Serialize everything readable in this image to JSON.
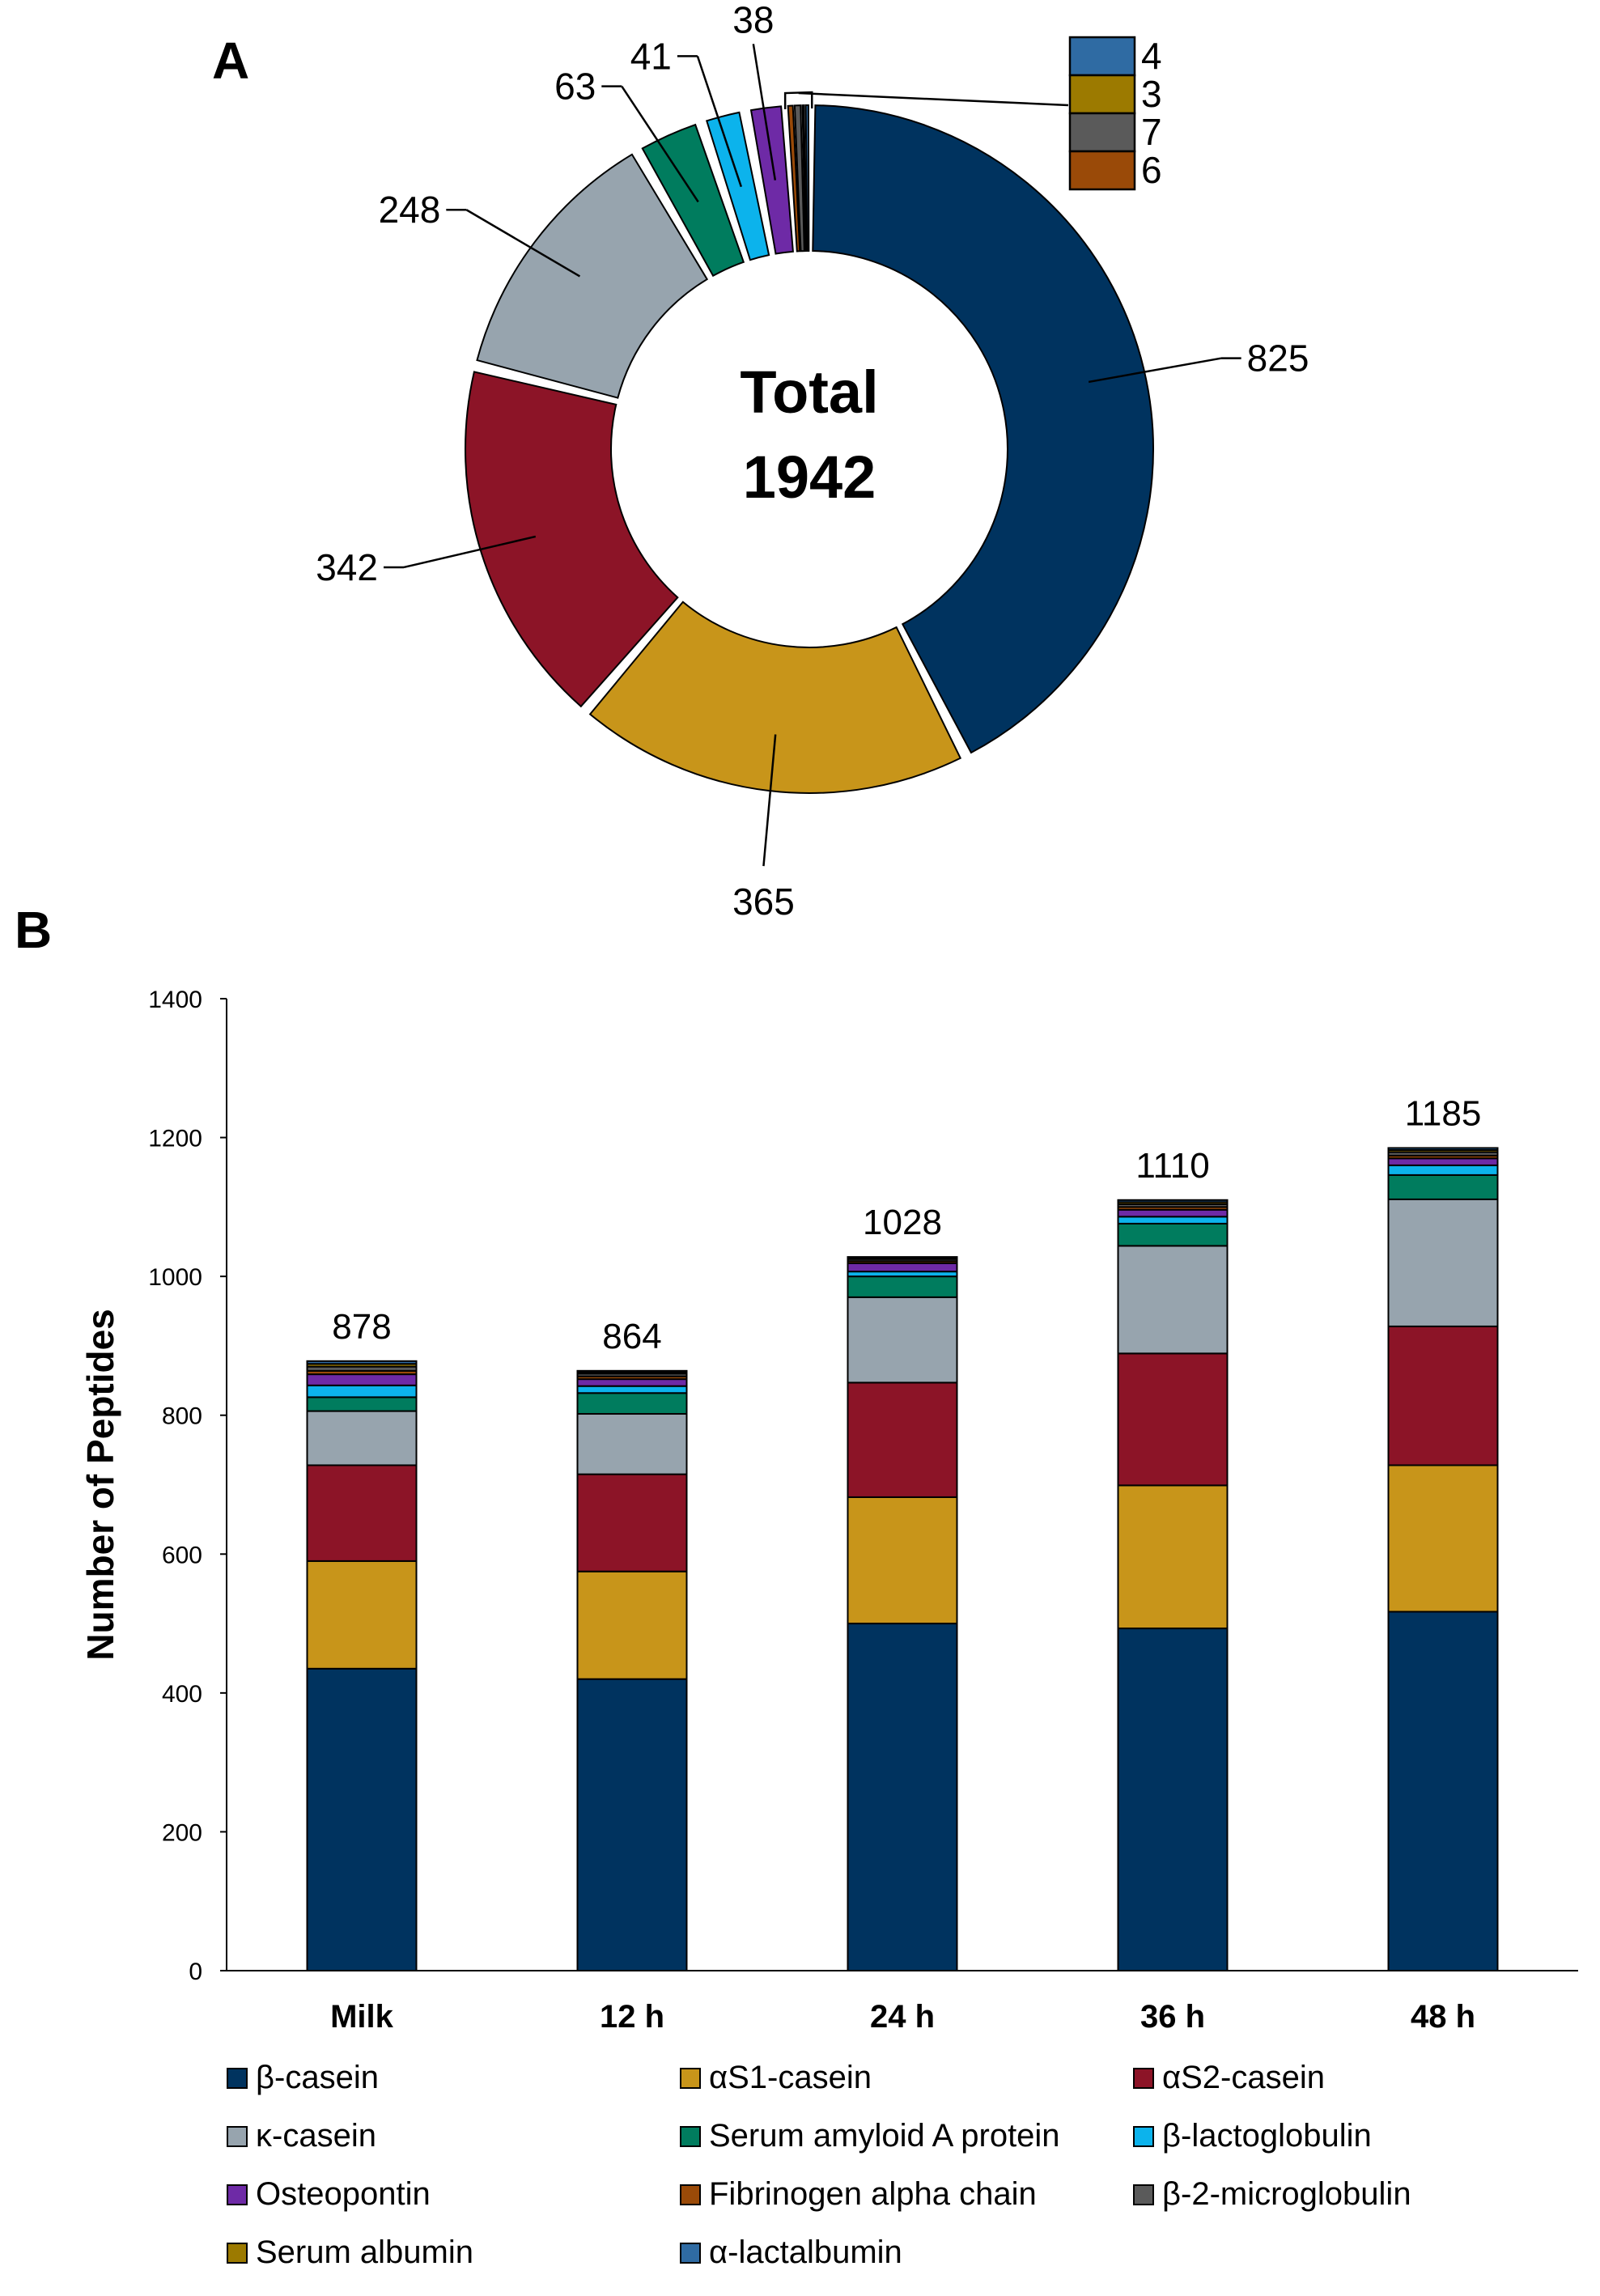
{
  "panels": {
    "a": "A",
    "b": "B"
  },
  "colors": {
    "beta_casein": "#00335f",
    "as1_casein": "#c8951a",
    "as2_casein": "#8c1427",
    "kappa_casein": "#97a4ae",
    "serum_amyloid": "#007c5e",
    "beta_lactoglobulin": "#0cb3ec",
    "osteopontin": "#6e2aa6",
    "fibrinogen": "#9a4a08",
    "b2_microglobulin": "#5a5a5a",
    "serum_albumin": "#9c7a00",
    "alpha_lactalbumin": "#2f6ba3"
  },
  "chart_data": [
    {
      "type": "pie",
      "variant": "donut",
      "center_label": [
        "Total",
        "1942"
      ],
      "slices": [
        {
          "key": "beta_casein",
          "label": "825",
          "value": 825
        },
        {
          "key": "as1_casein",
          "label": "365",
          "value": 365
        },
        {
          "key": "as2_casein",
          "label": "342",
          "value": 342
        },
        {
          "key": "kappa_casein",
          "label": "248",
          "value": 248
        },
        {
          "key": "serum_amyloid",
          "label": "63",
          "value": 63
        },
        {
          "key": "beta_lactoglobulin",
          "label": "41",
          "value": 41
        },
        {
          "key": "osteopontin",
          "label": "38",
          "value": 38
        },
        {
          "key": "fibrinogen",
          "label": "6",
          "value": 6
        },
        {
          "key": "b2_microglobulin",
          "label": "7",
          "value": 7
        },
        {
          "key": "serum_albumin",
          "label": "3",
          "value": 3
        },
        {
          "key": "alpha_lactalbumin",
          "label": "4",
          "value": 4
        }
      ],
      "inset_legend": [
        {
          "key": "alpha_lactalbumin",
          "label": "4"
        },
        {
          "key": "serum_albumin",
          "label": "3"
        },
        {
          "key": "b2_microglobulin",
          "label": "7"
        },
        {
          "key": "fibrinogen",
          "label": "6"
        }
      ]
    },
    {
      "type": "bar",
      "stacked": true,
      "categories": [
        "Milk",
        "12 h",
        "24 h",
        "36 h",
        "48 h"
      ],
      "totals": [
        878,
        864,
        1028,
        1110,
        1185
      ],
      "ylabel": "Number of Peptides",
      "ylim": [
        0,
        1400
      ],
      "yticks": [
        "0",
        "200",
        "400",
        "600",
        "800",
        "1000",
        "1200",
        "1400"
      ],
      "grid": false,
      "legend_position": "bottom",
      "series": [
        {
          "key": "beta_casein",
          "name": "β-casein",
          "values": [
            435,
            420,
            500,
            493,
            517
          ]
        },
        {
          "key": "as1_casein",
          "name": "αS1-casein",
          "values": [
            155,
            155,
            182,
            206,
            211
          ]
        },
        {
          "key": "as2_casein",
          "name": "αS2-casein",
          "values": [
            138,
            140,
            165,
            190,
            200
          ]
        },
        {
          "key": "kappa_casein",
          "name": "κ-casein",
          "values": [
            78,
            87,
            123,
            155,
            183
          ]
        },
        {
          "key": "serum_amyloid",
          "name": "Serum amyloid A protein",
          "values": [
            20,
            30,
            30,
            32,
            35
          ]
        },
        {
          "key": "beta_lactoglobulin",
          "name": "β-lactoglobulin",
          "values": [
            17,
            10,
            7,
            10,
            14
          ]
        },
        {
          "key": "osteopontin",
          "name": "Osteopontin",
          "values": [
            16,
            10,
            12,
            10,
            10
          ]
        },
        {
          "key": "fibrinogen",
          "name": "Fibrinogen alpha chain",
          "values": [
            5,
            4,
            3,
            4,
            4
          ]
        },
        {
          "key": "b2_microglobulin",
          "name": "β-2-microglobulin",
          "values": [
            6,
            4,
            3,
            4,
            5
          ]
        },
        {
          "key": "serum_albumin",
          "name": "Serum albumin",
          "values": [
            4,
            2,
            2,
            3,
            3
          ]
        },
        {
          "key": "alpha_lactalbumin",
          "name": "α-lactalbumin",
          "values": [
            4,
            2,
            1,
            3,
            3
          ]
        }
      ]
    }
  ]
}
